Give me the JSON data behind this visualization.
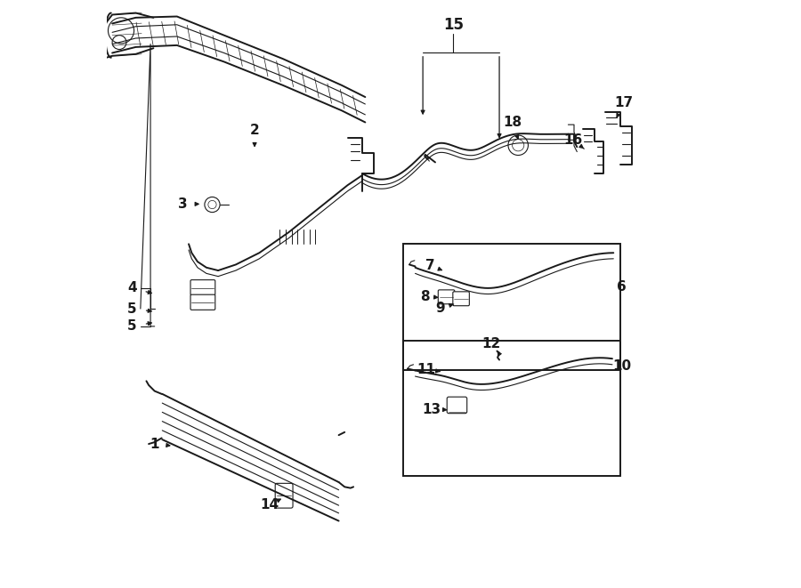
{
  "bg_color": "#ffffff",
  "line_color": "#1a1a1a",
  "lw_main": 1.4,
  "lw_thin": 0.8,
  "lw_thick": 2.0,
  "figsize": [
    9.0,
    6.61
  ],
  "dpi": 100,
  "labels": {
    "1": [
      0.095,
      0.76,
      0.13,
      0.765
    ],
    "2": [
      0.255,
      0.235,
      0.255,
      0.265
    ],
    "3": [
      0.14,
      0.355,
      0.175,
      0.355
    ],
    "4": [
      0.048,
      0.49,
      0.085,
      0.5
    ],
    "5a": [
      0.048,
      0.525,
      0.085,
      0.535
    ],
    "5b": [
      0.048,
      0.555,
      0.085,
      0.548
    ],
    "6": [
      0.875,
      0.49,
      null,
      null
    ],
    "7": [
      0.565,
      0.455,
      0.585,
      0.462
    ],
    "8": [
      0.553,
      0.505,
      0.577,
      0.505
    ],
    "9": [
      0.575,
      0.525,
      0.603,
      0.518
    ],
    "10": [
      0.875,
      0.62,
      null,
      null
    ],
    "11": [
      0.555,
      0.625,
      0.578,
      0.632
    ],
    "12": [
      0.66,
      0.585,
      0.668,
      0.597
    ],
    "13": [
      0.565,
      0.695,
      0.593,
      0.695
    ],
    "14": [
      0.29,
      0.855,
      0.305,
      0.848
    ],
    "15": [
      0.59,
      0.042,
      null,
      null
    ],
    "16": [
      0.795,
      0.24,
      0.812,
      0.255
    ],
    "17": [
      0.88,
      0.175,
      0.868,
      0.205
    ],
    "18": [
      0.69,
      0.21,
      0.703,
      0.24
    ]
  }
}
